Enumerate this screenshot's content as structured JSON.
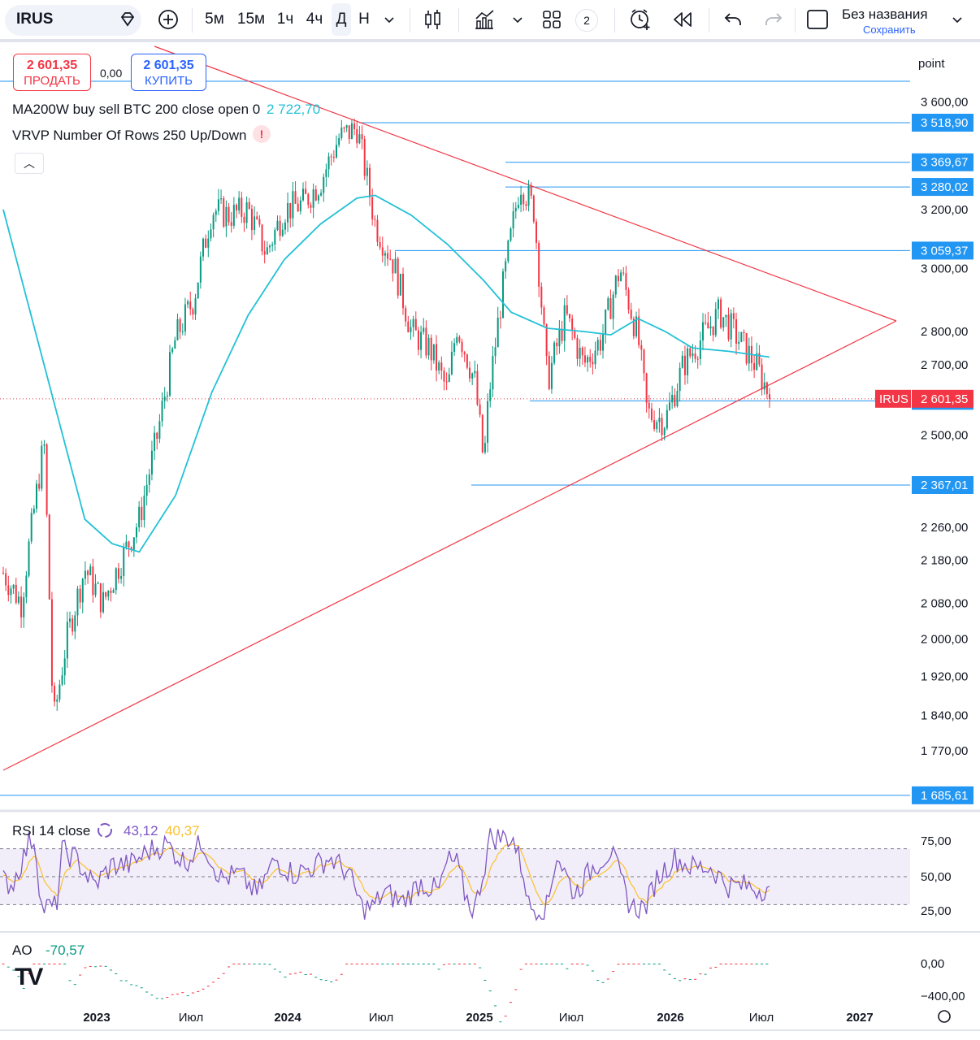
{
  "toolbar": {
    "symbol": "IRUS",
    "timeframes": [
      "5м",
      "15м",
      "1ч",
      "4ч",
      "Д",
      "Н"
    ],
    "active_timeframe": "Д",
    "layout_count": "2",
    "title": "Без названия",
    "save_label": "Сохранить"
  },
  "trade": {
    "sell_price": "2 601,35",
    "sell_label": "ПРОДАТЬ",
    "spread": "0,00",
    "buy_price": "2 601,35",
    "buy_label": "КУПИТЬ"
  },
  "indicators": {
    "ma_label": "MA200W buy sell BTC 200 close open 0",
    "ma_value": "2 722,70",
    "vrvp_label": "VRVP Number Of Rows 250 Up/Down",
    "rsi_label": "RSI 14 close",
    "rsi_value": "43,12",
    "rsi_ma_value": "40,37",
    "ao_label": "AO",
    "ao_value": "-70,57"
  },
  "scale_unit": "point",
  "colors": {
    "up": "#089981",
    "down": "#f23645",
    "ma": "#22c1d6",
    "hline": "#2196f3",
    "trend": "#f23645",
    "rsi": "#7e57c2",
    "rsi_ma": "#fbc02d",
    "price_tag": "#f23645"
  },
  "price_axis": {
    "ticks": [
      "3 600,00",
      "3 200,00",
      "3 000,00",
      "2 800,00",
      "2 700,00",
      "2 500,00",
      "2 260,00",
      "2 180,00",
      "2 080,00",
      "2 000,00",
      "1 920,00",
      "1 840,00",
      "1 770,00"
    ],
    "level_tags": [
      "3 518,90",
      "3 369,67",
      "3 280,02",
      "3 059,37",
      "2 595,57",
      "2 367,01",
      "1 685,61"
    ],
    "current_symbol": "IRUS",
    "current_price": "2 601,35"
  },
  "rsi_axis": [
    "75,00",
    "50,00",
    "25,00"
  ],
  "ao_axis": [
    "0,00",
    "−400,00"
  ],
  "time_axis": [
    "2023",
    "Июл",
    "2024",
    "Июл",
    "2025",
    "Июл",
    "2026",
    "Июл",
    "2027"
  ],
  "chart_data": {
    "type": "candlestick",
    "symbol": "IRUS",
    "interval": "Д",
    "y_scale": "log",
    "last_price": 2601.35,
    "horizontal_levels": [
      3518.9,
      3369.67,
      3280.02,
      3059.37,
      2595.57,
      2367.01,
      1685.61
    ],
    "price_path": [
      {
        "x": 0.0,
        "p": 2150
      },
      {
        "x": 0.02,
        "p": 2080
      },
      {
        "x": 0.035,
        "p": 2320
      },
      {
        "x": 0.045,
        "p": 2480
      },
      {
        "x": 0.055,
        "p": 1820
      },
      {
        "x": 0.07,
        "p": 2000
      },
      {
        "x": 0.09,
        "p": 2160
      },
      {
        "x": 0.11,
        "p": 2080
      },
      {
        "x": 0.13,
        "p": 2180
      },
      {
        "x": 0.15,
        "p": 2280
      },
      {
        "x": 0.17,
        "p": 2500
      },
      {
        "x": 0.19,
        "p": 2780
      },
      {
        "x": 0.21,
        "p": 2900
      },
      {
        "x": 0.23,
        "p": 3200
      },
      {
        "x": 0.25,
        "p": 3180
      },
      {
        "x": 0.27,
        "p": 3200
      },
      {
        "x": 0.29,
        "p": 3050
      },
      {
        "x": 0.31,
        "p": 3200
      },
      {
        "x": 0.33,
        "p": 3220
      },
      {
        "x": 0.35,
        "p": 3300
      },
      {
        "x": 0.37,
        "p": 3460
      },
      {
        "x": 0.39,
        "p": 3500
      },
      {
        "x": 0.41,
        "p": 3150
      },
      {
        "x": 0.43,
        "p": 3020
      },
      {
        "x": 0.45,
        "p": 2800
      },
      {
        "x": 0.47,
        "p": 2750
      },
      {
        "x": 0.49,
        "p": 2620
      },
      {
        "x": 0.5,
        "p": 2820
      },
      {
        "x": 0.52,
        "p": 2650
      },
      {
        "x": 0.53,
        "p": 2420
      },
      {
        "x": 0.535,
        "p": 2600
      },
      {
        "x": 0.55,
        "p": 2920
      },
      {
        "x": 0.57,
        "p": 3300
      },
      {
        "x": 0.585,
        "p": 3200
      },
      {
        "x": 0.6,
        "p": 2650
      },
      {
        "x": 0.62,
        "p": 2850
      },
      {
        "x": 0.64,
        "p": 2700
      },
      {
        "x": 0.66,
        "p": 2780
      },
      {
        "x": 0.68,
        "p": 3000
      },
      {
        "x": 0.7,
        "p": 2780
      },
      {
        "x": 0.71,
        "p": 2560
      },
      {
        "x": 0.73,
        "p": 2540
      },
      {
        "x": 0.75,
        "p": 2700
      },
      {
        "x": 0.77,
        "p": 2780
      },
      {
        "x": 0.79,
        "p": 2860
      },
      {
        "x": 0.81,
        "p": 2780
      },
      {
        "x": 0.83,
        "p": 2700
      },
      {
        "x": 0.845,
        "p": 2610
      }
    ],
    "ma_path": [
      {
        "x": 0.0,
        "p": 3200
      },
      {
        "x": 0.05,
        "p": 2650
      },
      {
        "x": 0.09,
        "p": 2280
      },
      {
        "x": 0.12,
        "p": 2220
      },
      {
        "x": 0.15,
        "p": 2200
      },
      {
        "x": 0.19,
        "p": 2340
      },
      {
        "x": 0.23,
        "p": 2620
      },
      {
        "x": 0.27,
        "p": 2850
      },
      {
        "x": 0.31,
        "p": 3030
      },
      {
        "x": 0.35,
        "p": 3150
      },
      {
        "x": 0.39,
        "p": 3240
      },
      {
        "x": 0.41,
        "p": 3250
      },
      {
        "x": 0.45,
        "p": 3180
      },
      {
        "x": 0.49,
        "p": 3080
      },
      {
        "x": 0.53,
        "p": 2960
      },
      {
        "x": 0.56,
        "p": 2860
      },
      {
        "x": 0.6,
        "p": 2810
      },
      {
        "x": 0.64,
        "p": 2800
      },
      {
        "x": 0.67,
        "p": 2790
      },
      {
        "x": 0.7,
        "p": 2840
      },
      {
        "x": 0.73,
        "p": 2800
      },
      {
        "x": 0.76,
        "p": 2750
      },
      {
        "x": 0.8,
        "p": 2740
      },
      {
        "x": 0.845,
        "p": 2722.7
      }
    ],
    "rsi_last": 43.12,
    "rsi_ma_last": 40.37,
    "ao_last": -70.57
  }
}
